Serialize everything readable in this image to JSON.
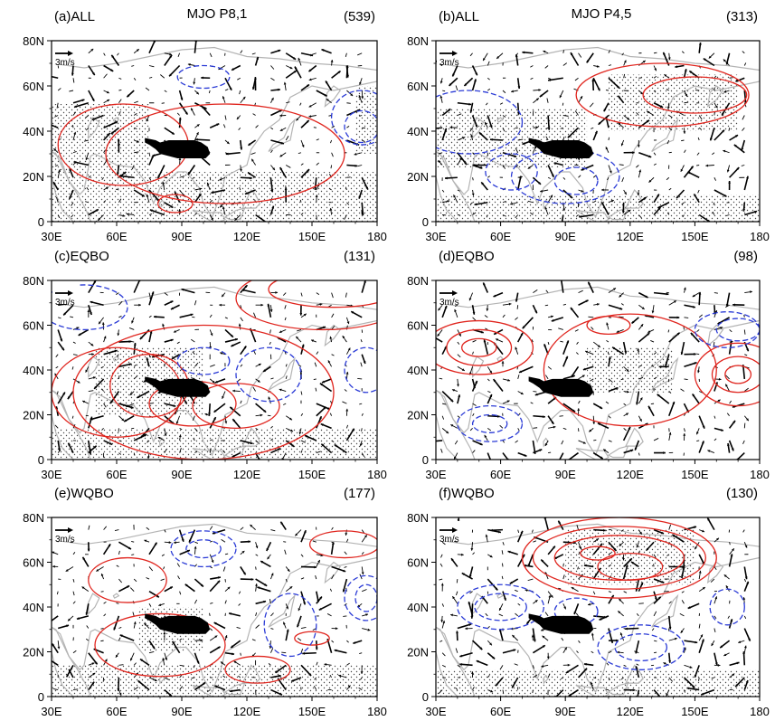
{
  "figure": {
    "column_titles": [
      "MJO  P8,1",
      "MJO  P4,5"
    ],
    "panels": [
      {
        "id": "a",
        "label": "(a)ALL",
        "count": "(539)",
        "vector_ref": "3m/s"
      },
      {
        "id": "b",
        "label": "(b)ALL",
        "count": "(313)",
        "vector_ref": "3m/s"
      },
      {
        "id": "c",
        "label": "(c)EQBO",
        "count": "(131)",
        "vector_ref": "3m/s"
      },
      {
        "id": "d",
        "label": "(d)EQBO",
        "count": "(98)",
        "vector_ref": "3m/s"
      },
      {
        "id": "e",
        "label": "(e)WQBO",
        "count": "(177)",
        "vector_ref": "3m/s"
      },
      {
        "id": "f",
        "label": "(f)WQBO",
        "count": "(130)",
        "vector_ref": "3m/s"
      }
    ],
    "lon_ticks": [
      "30E",
      "60E",
      "90E",
      "120E",
      "150E",
      "180"
    ],
    "lat_ticks": [
      "0",
      "20N",
      "40N",
      "60N",
      "80N"
    ],
    "map_extent": {
      "lon": [
        30,
        180
      ],
      "lat": [
        0,
        80
      ]
    },
    "colors": {
      "positive_contour": "#e0261f",
      "negative_contour": "#2b3bd6",
      "coastline": "#b4b4b4",
      "tibetan_plateau": "#000000",
      "vector": "#000000"
    }
  }
}
